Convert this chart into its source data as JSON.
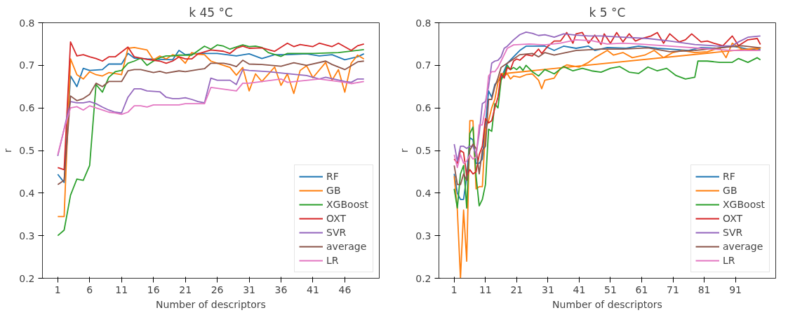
{
  "chart_data": [
    {
      "type": "line",
      "title": "k 45 °C",
      "xlabel": "Number of descriptors",
      "ylabel": "r",
      "xlim": [
        -1.4,
        51.4
      ],
      "xticks": [
        1,
        6,
        11,
        16,
        21,
        26,
        31,
        36,
        41,
        46
      ],
      "ylim": [
        0.2,
        0.8
      ],
      "yticks": [
        0.2,
        0.3,
        0.4,
        0.5,
        0.6,
        0.7,
        0.8
      ],
      "legend": "bottom right",
      "grid": false,
      "line_style": "solid",
      "series": [
        {
          "name": "RF",
          "color": "#1f77b4",
          "x": [
            1,
            2,
            3,
            4,
            5,
            6,
            8,
            9,
            11,
            12,
            13,
            15,
            19,
            20,
            21,
            23,
            26,
            29,
            31,
            33,
            35,
            37,
            40,
            42,
            44,
            46,
            48,
            49
          ],
          "values": [
            0.444,
            0.425,
            0.675,
            0.65,
            0.693,
            0.688,
            0.69,
            0.703,
            0.703,
            0.728,
            0.717,
            0.715,
            0.713,
            0.735,
            0.725,
            0.728,
            0.728,
            0.722,
            0.727,
            0.716,
            0.725,
            0.725,
            0.727,
            0.722,
            0.725,
            0.713,
            0.72,
            0.727
          ]
        },
        {
          "name": "GB",
          "color": "#ff7f0e",
          "x": [
            1,
            2,
            3,
            4,
            5,
            6,
            7,
            8,
            9,
            11,
            12,
            13,
            15,
            16,
            17,
            18,
            19,
            20,
            21,
            22,
            23,
            24,
            25,
            26,
            28,
            29,
            30,
            31,
            32,
            33,
            35,
            36,
            37,
            38,
            39,
            40,
            41,
            43,
            44,
            45,
            46,
            47,
            48,
            49
          ],
          "values": [
            0.345,
            0.345,
            0.715,
            0.678,
            0.668,
            0.685,
            0.678,
            0.675,
            0.683,
            0.678,
            0.74,
            0.742,
            0.736,
            0.713,
            0.722,
            0.715,
            0.725,
            0.72,
            0.705,
            0.73,
            0.726,
            0.725,
            0.71,
            0.705,
            0.695,
            0.677,
            0.695,
            0.64,
            0.68,
            0.662,
            0.696,
            0.653,
            0.68,
            0.634,
            0.688,
            0.699,
            0.671,
            0.707,
            0.665,
            0.69,
            0.637,
            0.705,
            0.724,
            0.715
          ]
        },
        {
          "name": "XGBoost",
          "color": "#2ca02c",
          "x": [
            1,
            2,
            3,
            4,
            5,
            6,
            7,
            8,
            9,
            10,
            11,
            12,
            13,
            14,
            15,
            16,
            17,
            18,
            19,
            20,
            22,
            24,
            25,
            26,
            27,
            28,
            30,
            31,
            32,
            33,
            34,
            36,
            37,
            41,
            45,
            49
          ],
          "values": [
            0.3,
            0.313,
            0.395,
            0.433,
            0.43,
            0.465,
            0.655,
            0.637,
            0.672,
            0.685,
            0.688,
            0.705,
            0.71,
            0.717,
            0.7,
            0.71,
            0.718,
            0.722,
            0.722,
            0.724,
            0.724,
            0.745,
            0.738,
            0.748,
            0.745,
            0.738,
            0.748,
            0.744,
            0.745,
            0.742,
            0.73,
            0.721,
            0.728,
            0.728,
            0.73,
            0.737
          ]
        },
        {
          "name": "OXT",
          "color": "#d62728",
          "x": [
            1,
            2,
            3,
            4,
            5,
            6,
            7,
            8,
            9,
            10,
            12,
            13,
            15,
            17,
            18,
            19,
            20,
            21,
            22,
            23,
            25,
            27,
            28,
            29,
            30,
            31,
            33,
            35,
            37,
            38,
            39,
            41,
            42,
            44,
            45,
            47,
            48,
            49
          ],
          "values": [
            0.46,
            0.455,
            0.755,
            0.722,
            0.725,
            0.72,
            0.716,
            0.71,
            0.72,
            0.72,
            0.743,
            0.72,
            0.714,
            0.71,
            0.705,
            0.71,
            0.72,
            0.715,
            0.715,
            0.727,
            0.736,
            0.733,
            0.728,
            0.74,
            0.745,
            0.74,
            0.741,
            0.733,
            0.752,
            0.744,
            0.749,
            0.744,
            0.752,
            0.744,
            0.752,
            0.735,
            0.746,
            0.75
          ]
        },
        {
          "name": "SVR",
          "color": "#9467bd",
          "x": [
            1,
            3,
            4,
            5,
            6,
            7,
            8,
            9,
            10,
            11,
            12,
            13,
            14,
            15,
            17,
            18,
            19,
            20,
            21,
            22,
            23,
            24,
            25,
            26,
            28,
            29,
            30,
            31,
            34,
            38,
            40,
            42,
            43,
            46,
            47,
            48,
            49
          ],
          "values": [
            0.487,
            0.615,
            0.612,
            0.612,
            0.615,
            0.61,
            0.602,
            0.595,
            0.59,
            0.588,
            0.625,
            0.645,
            0.645,
            0.64,
            0.638,
            0.625,
            0.622,
            0.622,
            0.624,
            0.62,
            0.615,
            0.612,
            0.67,
            0.665,
            0.665,
            0.655,
            0.69,
            0.688,
            0.685,
            0.679,
            0.676,
            0.668,
            0.672,
            0.662,
            0.66,
            0.668,
            0.668
          ]
        },
        {
          "name": "average",
          "color": "#8c564b",
          "x": [
            1,
            2,
            3,
            4,
            5,
            6,
            7,
            8,
            9,
            11,
            12,
            13,
            14,
            16,
            17,
            18,
            20,
            21,
            23,
            24,
            25,
            27,
            28,
            29,
            30,
            31,
            33,
            36,
            38,
            40,
            43,
            44,
            46,
            48,
            49
          ],
          "values": [
            0.42,
            0.43,
            0.628,
            0.617,
            0.622,
            0.632,
            0.658,
            0.65,
            0.662,
            0.662,
            0.687,
            0.69,
            0.69,
            0.683,
            0.686,
            0.682,
            0.687,
            0.685,
            0.69,
            0.692,
            0.705,
            0.705,
            0.702,
            0.697,
            0.712,
            0.703,
            0.702,
            0.698,
            0.706,
            0.7,
            0.71,
            0.702,
            0.69,
            0.708,
            0.71
          ]
        },
        {
          "name": "LR",
          "color": "#e377c2",
          "x": [
            1,
            2,
            3,
            4,
            5,
            6,
            7,
            8,
            9,
            10,
            11,
            12,
            13,
            14,
            15,
            16,
            20,
            21,
            24,
            25,
            28,
            29,
            30,
            31,
            36,
            37,
            42,
            46,
            47,
            49
          ],
          "values": [
            0.49,
            0.55,
            0.6,
            0.603,
            0.595,
            0.605,
            0.6,
            0.595,
            0.59,
            0.588,
            0.585,
            0.59,
            0.605,
            0.605,
            0.602,
            0.607,
            0.607,
            0.61,
            0.61,
            0.648,
            0.642,
            0.64,
            0.658,
            0.658,
            0.668,
            0.66,
            0.668,
            0.66,
            0.657,
            0.662
          ]
        }
      ]
    },
    {
      "type": "line",
      "title": "k 5 °C",
      "xlabel": "Number of descriptors",
      "ylabel": "r",
      "xlim": [
        -3.9,
        103.9
      ],
      "xticks": [
        1,
        11,
        21,
        31,
        41,
        51,
        61,
        71,
        81,
        91
      ],
      "ylim": [
        0.2,
        0.8
      ],
      "yticks": [
        0.2,
        0.3,
        0.4,
        0.5,
        0.6,
        0.7,
        0.8
      ],
      "legend": "bottom right",
      "grid": false,
      "line_style": "solid",
      "series": [
        {
          "name": "RF",
          "color": "#1f77b4",
          "x": [
            1,
            2,
            3,
            4,
            5,
            6,
            7,
            8,
            9,
            10,
            11,
            12,
            13,
            14,
            16,
            18,
            20,
            22,
            24,
            30,
            33,
            36,
            40,
            44,
            46,
            50,
            56,
            60,
            66,
            70,
            76,
            80,
            85,
            90,
            95,
            99
          ],
          "values": [
            0.445,
            0.4,
            0.385,
            0.385,
            0.44,
            0.53,
            0.525,
            0.47,
            0.47,
            0.48,
            0.56,
            0.64,
            0.625,
            0.655,
            0.67,
            0.705,
            0.72,
            0.735,
            0.745,
            0.745,
            0.735,
            0.745,
            0.74,
            0.745,
            0.735,
            0.742,
            0.74,
            0.745,
            0.74,
            0.738,
            0.735,
            0.742,
            0.74,
            0.745,
            0.738,
            0.737
          ]
        },
        {
          "name": "GB",
          "color": "#ff7f0e",
          "x": [
            1,
            2,
            3,
            4,
            5,
            6,
            7,
            8,
            9,
            10,
            11,
            12,
            13,
            14,
            15,
            16,
            17,
            18,
            19,
            20,
            22,
            24,
            26,
            28,
            29,
            30,
            33,
            35,
            37,
            41,
            44,
            46,
            50,
            52,
            55,
            58,
            62,
            65,
            68,
            71,
            74,
            78,
            82,
            86,
            88,
            90,
            93,
            97,
            99,
            16
          ],
          "values": [
            0.44,
            0.36,
            0.2,
            0.36,
            0.24,
            0.57,
            0.57,
            0.41,
            0.415,
            0.415,
            0.55,
            0.57,
            0.6,
            0.62,
            0.66,
            0.68,
            0.675,
            0.68,
            0.668,
            0.675,
            0.672,
            0.678,
            0.68,
            0.665,
            0.645,
            0.665,
            0.67,
            0.693,
            0.701,
            0.696,
            0.707,
            0.718,
            0.735,
            0.724,
            0.73,
            0.718,
            0.724,
            0.735,
            0.718,
            0.73,
            0.735,
            0.73,
            0.732,
            0.741,
            0.718,
            0.752,
            0.738,
            0.735,
            0.741,
            0.68
          ]
        },
        {
          "name": "XGBoost",
          "color": "#2ca02c",
          "x": [
            1,
            2,
            3,
            4,
            5,
            6,
            7,
            8,
            9,
            10,
            11,
            12,
            13,
            14,
            15,
            16,
            17,
            18,
            19,
            20,
            21,
            22,
            23,
            24,
            26,
            28,
            30,
            33,
            36,
            39,
            42,
            45,
            48,
            51,
            54,
            57,
            60,
            63,
            66,
            69,
            72,
            75,
            78,
            79,
            82,
            86,
            90,
            92,
            95,
            98,
            99
          ],
          "values": [
            0.41,
            0.365,
            0.445,
            0.465,
            0.365,
            0.54,
            0.555,
            0.44,
            0.37,
            0.385,
            0.42,
            0.55,
            0.545,
            0.61,
            0.6,
            0.665,
            0.68,
            0.7,
            0.69,
            0.695,
            0.69,
            0.697,
            0.688,
            0.7,
            0.685,
            0.675,
            0.69,
            0.68,
            0.697,
            0.687,
            0.693,
            0.687,
            0.684,
            0.693,
            0.697,
            0.684,
            0.681,
            0.696,
            0.687,
            0.693,
            0.676,
            0.668,
            0.672,
            0.71,
            0.71,
            0.707,
            0.707,
            0.716,
            0.707,
            0.718,
            0.713
          ]
        },
        {
          "name": "OXT",
          "color": "#d62728",
          "x": [
            1,
            2,
            3,
            4,
            5,
            6,
            7,
            8,
            9,
            10,
            11,
            12,
            13,
            14,
            15,
            16,
            17,
            18,
            19,
            20,
            21,
            22,
            24,
            26,
            28,
            29,
            31,
            33,
            35,
            37,
            39,
            40,
            42,
            44,
            46,
            48,
            49,
            51,
            53,
            55,
            57,
            59,
            61,
            64,
            66,
            68,
            70,
            73,
            75,
            77,
            80,
            82,
            84,
            87,
            90,
            92,
            95,
            98,
            99
          ],
          "values": [
            0.48,
            0.47,
            0.5,
            0.495,
            0.44,
            0.455,
            0.445,
            0.45,
            0.49,
            0.51,
            0.575,
            0.565,
            0.57,
            0.6,
            0.625,
            0.68,
            0.67,
            0.695,
            0.69,
            0.71,
            0.715,
            0.712,
            0.725,
            0.722,
            0.738,
            0.728,
            0.745,
            0.757,
            0.757,
            0.777,
            0.752,
            0.774,
            0.777,
            0.752,
            0.771,
            0.749,
            0.774,
            0.752,
            0.777,
            0.755,
            0.774,
            0.757,
            0.763,
            0.769,
            0.777,
            0.752,
            0.774,
            0.755,
            0.76,
            0.774,
            0.755,
            0.757,
            0.752,
            0.746,
            0.769,
            0.746,
            0.76,
            0.763,
            0.749
          ]
        },
        {
          "name": "SVR",
          "color": "#9467bd",
          "x": [
            1,
            2,
            3,
            4,
            5,
            6,
            7,
            8,
            9,
            10,
            11,
            12,
            13,
            14,
            15,
            16,
            17,
            18,
            20,
            22,
            24,
            26,
            28,
            30,
            32,
            33,
            36,
            40,
            44,
            48,
            55,
            63,
            70,
            78,
            86,
            90,
            92,
            95,
            99
          ],
          "values": [
            0.515,
            0.475,
            0.51,
            0.51,
            0.505,
            0.51,
            0.51,
            0.49,
            0.54,
            0.61,
            0.615,
            0.65,
            0.705,
            0.71,
            0.712,
            0.72,
            0.74,
            0.745,
            0.76,
            0.772,
            0.778,
            0.775,
            0.77,
            0.772,
            0.768,
            0.766,
            0.774,
            0.771,
            0.769,
            0.769,
            0.766,
            0.763,
            0.757,
            0.749,
            0.745,
            0.746,
            0.755,
            0.766,
            0.769
          ]
        },
        {
          "name": "average",
          "color": "#8c564b",
          "x": [
            1,
            2,
            3,
            4,
            5,
            6,
            7,
            8,
            9,
            10,
            11,
            12,
            13,
            14,
            15,
            16,
            17,
            18,
            20,
            22,
            26,
            28,
            30,
            33,
            40,
            48,
            55,
            63,
            70,
            78,
            86,
            93,
            99
          ],
          "values": [
            0.465,
            0.42,
            0.42,
            0.445,
            0.43,
            0.5,
            0.515,
            0.505,
            0.445,
            0.5,
            0.51,
            0.62,
            0.62,
            0.65,
            0.67,
            0.695,
            0.7,
            0.705,
            0.715,
            0.725,
            0.728,
            0.72,
            0.73,
            0.724,
            0.735,
            0.738,
            0.738,
            0.741,
            0.732,
            0.735,
            0.741,
            0.746,
            0.741
          ]
        },
        {
          "name": "LR",
          "color": "#e377c2",
          "x": [
            1,
            2,
            3,
            4,
            5,
            6,
            7,
            8,
            9,
            10,
            11,
            12,
            13,
            14,
            15,
            16,
            17,
            18,
            20,
            25,
            30,
            35,
            40,
            45,
            50,
            55,
            60,
            70,
            80,
            90,
            99
          ],
          "values": [
            0.49,
            0.46,
            0.49,
            0.47,
            0.475,
            0.49,
            0.48,
            0.485,
            0.56,
            0.56,
            0.6,
            0.675,
            0.685,
            0.685,
            0.695,
            0.71,
            0.725,
            0.74,
            0.748,
            0.75,
            0.748,
            0.752,
            0.76,
            0.758,
            0.75,
            0.752,
            0.75,
            0.745,
            0.74,
            0.735,
            0.735
          ]
        }
      ]
    }
  ]
}
